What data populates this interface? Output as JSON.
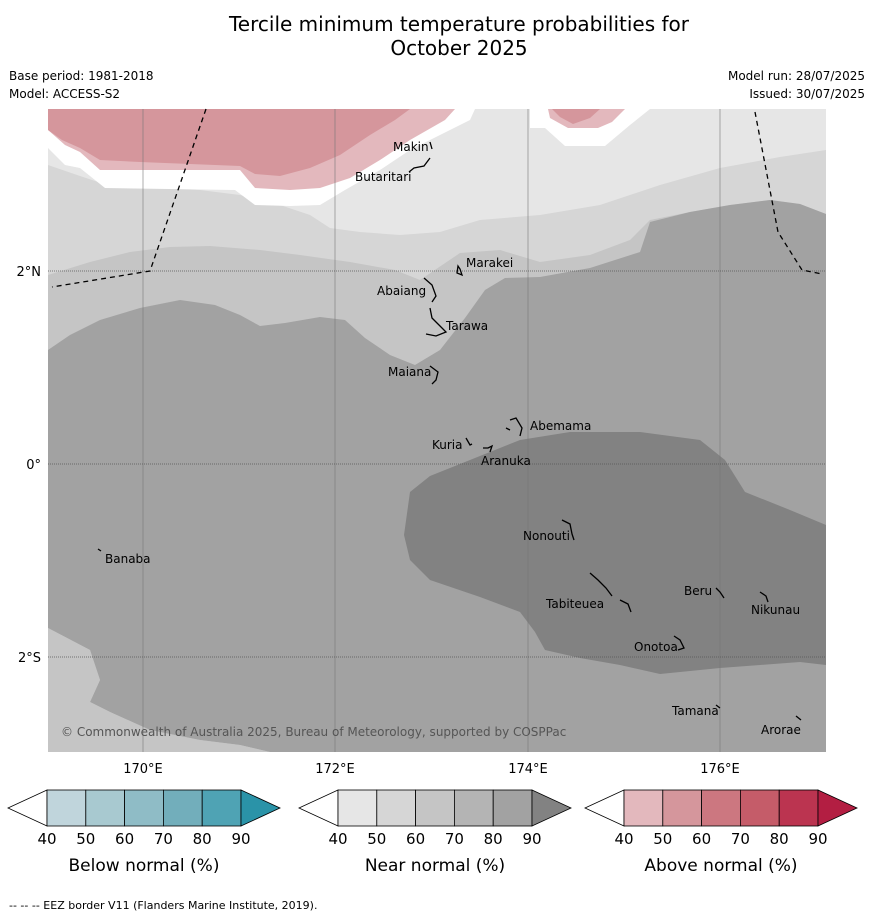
{
  "title_line1": "Tercile minimum temperature probabilities for",
  "title_line2": "October 2025",
  "meta": {
    "base_period": "Base period: 1981-2018",
    "model": "Model: ACCESS-S2",
    "model_run": "Model run: 28/07/2025",
    "issued": "Issued: 30/07/2025"
  },
  "axes": {
    "lon_ticks": [
      "170°E",
      "172°E",
      "174°E",
      "176°E"
    ],
    "lat_ticks": [
      "2°N",
      "0°",
      "2°S"
    ]
  },
  "places": [
    "Makin",
    "Butaritari",
    "Marakei",
    "Abaiang",
    "Tarawa",
    "Maiana",
    "Abemama",
    "Kuria",
    "Aranuka",
    "Nonouti",
    "Banaba",
    "Tabiteuea",
    "Beru",
    "Nikunau",
    "Onotoa",
    "Tamana",
    "Arorae"
  ],
  "copyright": "© Commonwealth of Australia 2025, Bureau of Meteorology, supported by COSPPac",
  "colorbars": [
    {
      "label": "Below normal (%)",
      "ticks": [
        "40",
        "50",
        "60",
        "70",
        "80",
        "90"
      ],
      "colors": [
        "#ffffff",
        "#c0d5dc",
        "#a8c9d0",
        "#8fbcc6",
        "#72aebb",
        "#4fa3b4",
        "#2a93a8"
      ]
    },
    {
      "label": "Near normal (%)",
      "ticks": [
        "40",
        "50",
        "60",
        "70",
        "80",
        "90"
      ],
      "colors": [
        "#ffffff",
        "#e6e6e6",
        "#d6d6d6",
        "#c5c5c5",
        "#b4b4b4",
        "#a2a2a2",
        "#828282"
      ]
    },
    {
      "label": "Above normal (%)",
      "ticks": [
        "40",
        "50",
        "60",
        "70",
        "80",
        "90"
      ],
      "colors": [
        "#ffffff",
        "#e3b8bd",
        "#d5969c",
        "#cc7780",
        "#c55c69",
        "#bb3450",
        "#b31e42"
      ]
    }
  ],
  "footer": "--  --  -- EEZ border V11 (Flanders Marine Institute, 2019)."
}
